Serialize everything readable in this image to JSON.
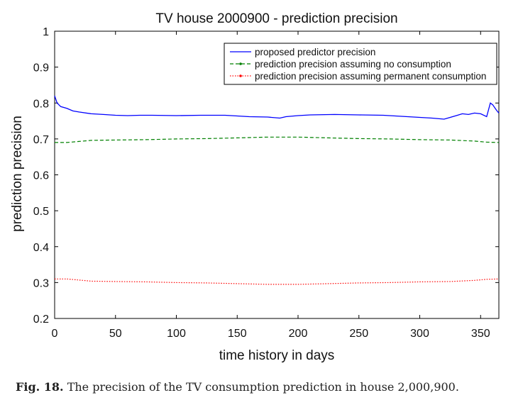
{
  "chart_data": {
    "type": "line",
    "title": "TV house 2000900 - prediction precision",
    "xlabel": "time history in days",
    "ylabel": "prediction precision",
    "xlim": [
      0,
      365
    ],
    "ylim": [
      0.2,
      1
    ],
    "xticks": [
      0,
      50,
      100,
      150,
      200,
      250,
      300,
      350
    ],
    "yticks": [
      0.2,
      0.3,
      0.4,
      0.5,
      0.6,
      0.7,
      0.8,
      0.9,
      1
    ],
    "ytick_labels": [
      "0.2",
      "0.3",
      "0.4",
      "0.5",
      "0.6",
      "0.7",
      "0.8",
      "0.9",
      "1"
    ],
    "grid": false,
    "legend_position": "top-right",
    "series": [
      {
        "name": "proposed predictor precision",
        "color": "#0000ff",
        "style": "solid",
        "x": [
          0,
          2,
          5,
          10,
          15,
          20,
          30,
          40,
          50,
          60,
          70,
          80,
          100,
          120,
          140,
          150,
          160,
          175,
          185,
          190,
          200,
          210,
          230,
          250,
          270,
          280,
          290,
          300,
          310,
          320,
          325,
          330,
          335,
          340,
          345,
          350,
          355,
          358,
          360,
          363,
          365
        ],
        "values": [
          0.82,
          0.8,
          0.79,
          0.785,
          0.778,
          0.775,
          0.77,
          0.768,
          0.766,
          0.765,
          0.766,
          0.766,
          0.765,
          0.766,
          0.766,
          0.764,
          0.762,
          0.761,
          0.758,
          0.762,
          0.765,
          0.767,
          0.768,
          0.767,
          0.766,
          0.764,
          0.762,
          0.76,
          0.758,
          0.755,
          0.76,
          0.765,
          0.77,
          0.768,
          0.772,
          0.77,
          0.762,
          0.8,
          0.795,
          0.78,
          0.772
        ]
      },
      {
        "name": "prediction precision assuming no consumption",
        "color": "#008000",
        "style": "dashed",
        "x": [
          0,
          10,
          20,
          30,
          50,
          75,
          100,
          125,
          150,
          175,
          200,
          225,
          250,
          275,
          300,
          325,
          345,
          355,
          365
        ],
        "values": [
          0.69,
          0.69,
          0.693,
          0.696,
          0.697,
          0.698,
          0.7,
          0.701,
          0.703,
          0.705,
          0.705,
          0.703,
          0.701,
          0.7,
          0.698,
          0.697,
          0.694,
          0.691,
          0.69
        ]
      },
      {
        "name": "prediction precision assuming permanent consumption",
        "color": "#ff0000",
        "style": "dotted",
        "x": [
          0,
          10,
          20,
          30,
          50,
          75,
          100,
          125,
          150,
          175,
          200,
          225,
          250,
          275,
          300,
          325,
          345,
          355,
          365
        ],
        "values": [
          0.31,
          0.31,
          0.307,
          0.304,
          0.303,
          0.302,
          0.3,
          0.299,
          0.297,
          0.295,
          0.295,
          0.297,
          0.299,
          0.3,
          0.302,
          0.303,
          0.306,
          0.309,
          0.31
        ]
      }
    ]
  },
  "caption": {
    "label": "Fig. 18.",
    "text": "The precision of the TV consumption prediction in house 2,000,900."
  }
}
